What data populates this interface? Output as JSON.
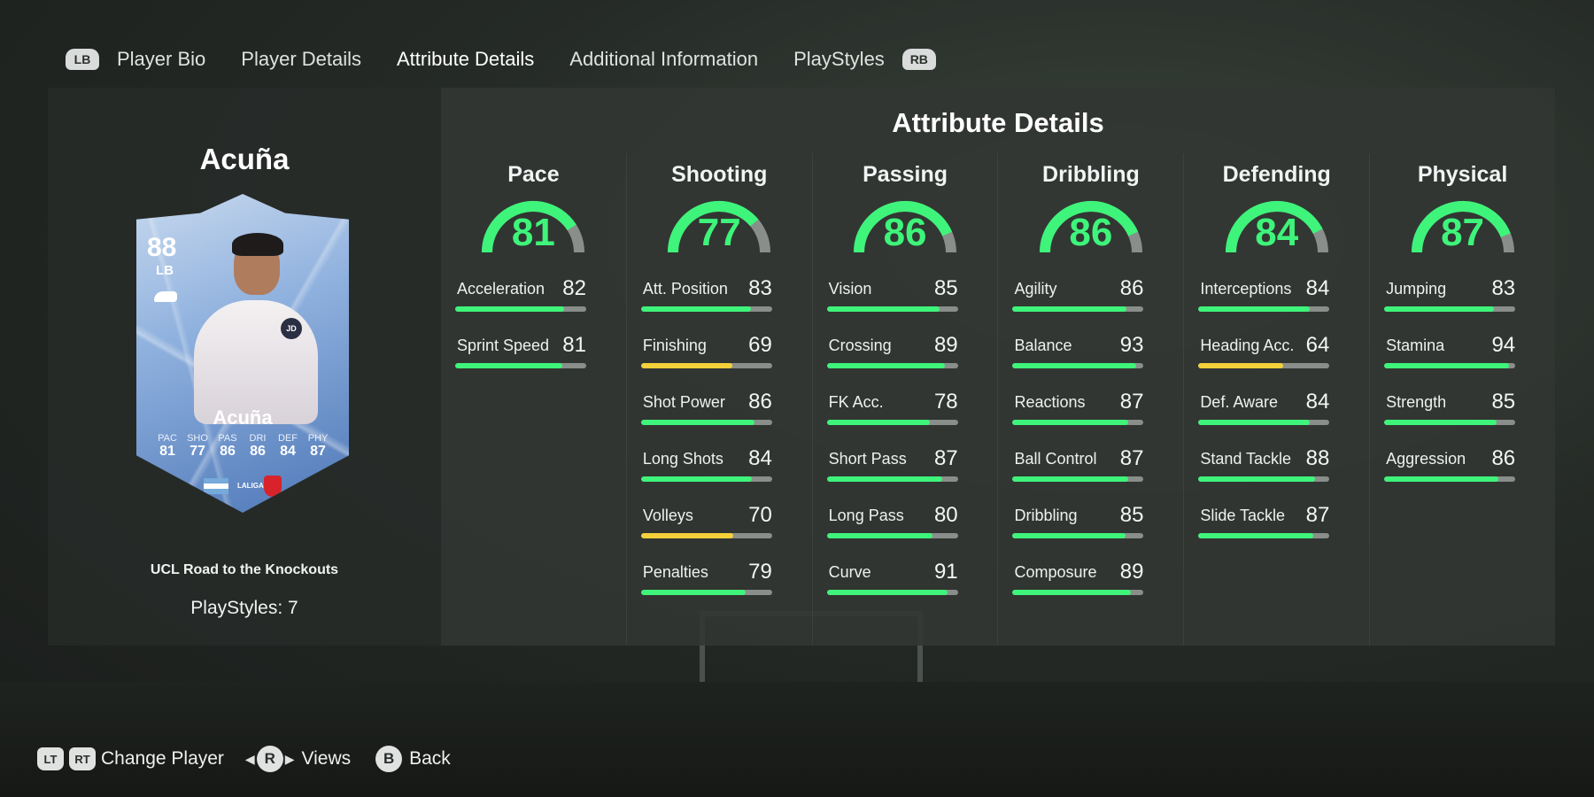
{
  "tabs": {
    "lb": "LB",
    "rb": "RB",
    "items": [
      "Player Bio",
      "Player Details",
      "Attribute Details",
      "Additional Information",
      "PlayStyles"
    ],
    "active_index": 2
  },
  "player": {
    "name": "Acuña",
    "card": {
      "rating": "88",
      "position": "LB",
      "name": "Acuña",
      "sponsor": "JD",
      "league": "LALIGA",
      "stats": [
        {
          "label": "PAC",
          "value": "81"
        },
        {
          "label": "SHO",
          "value": "77"
        },
        {
          "label": "PAS",
          "value": "86"
        },
        {
          "label": "DRI",
          "value": "86"
        },
        {
          "label": "DEF",
          "value": "84"
        },
        {
          "label": "PHY",
          "value": "87"
        }
      ]
    },
    "promo": "UCL Road to the Knockouts",
    "playstyles": "PlayStyles: 7"
  },
  "attributes": {
    "title": "Attribute Details",
    "colors": {
      "high": "#3ef47a",
      "mid": "#f4d03a",
      "track": "#8a8e8b"
    },
    "groups": [
      {
        "name": "Pace",
        "value": 81,
        "items": [
          {
            "name": "Acceleration",
            "value": 82
          },
          {
            "name": "Sprint Speed",
            "value": 81
          }
        ]
      },
      {
        "name": "Shooting",
        "value": 77,
        "items": [
          {
            "name": "Att. Position",
            "value": 83
          },
          {
            "name": "Finishing",
            "value": 69
          },
          {
            "name": "Shot Power",
            "value": 86
          },
          {
            "name": "Long Shots",
            "value": 84
          },
          {
            "name": "Volleys",
            "value": 70
          },
          {
            "name": "Penalties",
            "value": 79
          }
        ]
      },
      {
        "name": "Passing",
        "value": 86,
        "items": [
          {
            "name": "Vision",
            "value": 85
          },
          {
            "name": "Crossing",
            "value": 89
          },
          {
            "name": "FK Acc.",
            "value": 78
          },
          {
            "name": "Short Pass",
            "value": 87
          },
          {
            "name": "Long Pass",
            "value": 80
          },
          {
            "name": "Curve",
            "value": 91
          }
        ]
      },
      {
        "name": "Dribbling",
        "value": 86,
        "items": [
          {
            "name": "Agility",
            "value": 86
          },
          {
            "name": "Balance",
            "value": 93
          },
          {
            "name": "Reactions",
            "value": 87
          },
          {
            "name": "Ball Control",
            "value": 87
          },
          {
            "name": "Dribbling",
            "value": 85
          },
          {
            "name": "Composure",
            "value": 89
          }
        ]
      },
      {
        "name": "Defending",
        "value": 84,
        "items": [
          {
            "name": "Interceptions",
            "value": 84
          },
          {
            "name": "Heading Acc.",
            "value": 64
          },
          {
            "name": "Def. Aware",
            "value": 84
          },
          {
            "name": "Stand Tackle",
            "value": 88
          },
          {
            "name": "Slide Tackle",
            "value": 87
          }
        ]
      },
      {
        "name": "Physical",
        "value": 87,
        "items": [
          {
            "name": "Jumping",
            "value": 83
          },
          {
            "name": "Stamina",
            "value": 94
          },
          {
            "name": "Strength",
            "value": 85
          },
          {
            "name": "Aggression",
            "value": 86
          }
        ]
      }
    ]
  },
  "footer": {
    "lt": "LT",
    "rt": "RT",
    "change_player": "Change Player",
    "r": "R",
    "views": "Views",
    "b": "B",
    "back": "Back"
  }
}
